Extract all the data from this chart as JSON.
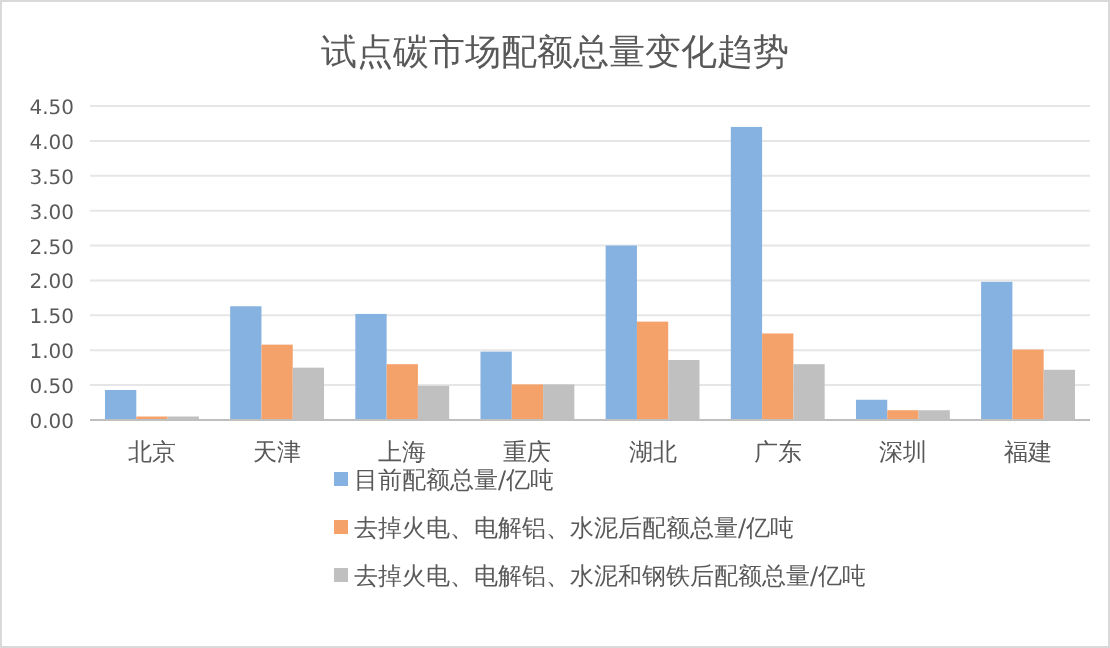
{
  "chart_data": {
    "type": "bar",
    "title": "试点碳市场配额总量变化趋势",
    "categories": [
      "北京",
      "天津",
      "上海",
      "重庆",
      "湖北",
      "广东",
      "深圳",
      "福建"
    ],
    "series": [
      {
        "name": "目前配额总量/亿吨",
        "color": "#85b2e0",
        "values": [
          0.43,
          1.63,
          1.52,
          0.98,
          2.5,
          4.2,
          0.29,
          1.98
        ]
      },
      {
        "name": "去掉火电、电解铝、水泥后配额总量/亿吨",
        "color": "#f4a26a",
        "values": [
          0.05,
          1.08,
          0.8,
          0.51,
          1.41,
          1.24,
          0.14,
          1.01
        ]
      },
      {
        "name": "去掉火电、电解铝、水泥和钢铁后配额总量/亿吨",
        "color": "#c0c0c0",
        "values": [
          0.05,
          0.75,
          0.49,
          0.51,
          0.86,
          0.8,
          0.14,
          0.72
        ]
      }
    ],
    "ylim": [
      0,
      4.5
    ],
    "yticks": [
      {
        "value": 0,
        "label": "0.00"
      },
      {
        "value": 0.5,
        "label": "0.50"
      },
      {
        "value": 1,
        "label": "1.00"
      },
      {
        "value": 1.5,
        "label": "1.50"
      },
      {
        "value": 2,
        "label": "2.00"
      },
      {
        "value": 2.5,
        "label": "2.50"
      },
      {
        "value": 3,
        "label": "3.00"
      },
      {
        "value": 3.5,
        "label": "3.50"
      },
      {
        "value": 4,
        "label": "4.00"
      },
      {
        "value": 4.5,
        "label": "4.50"
      }
    ],
    "grid": "y",
    "legend": "bottom"
  }
}
